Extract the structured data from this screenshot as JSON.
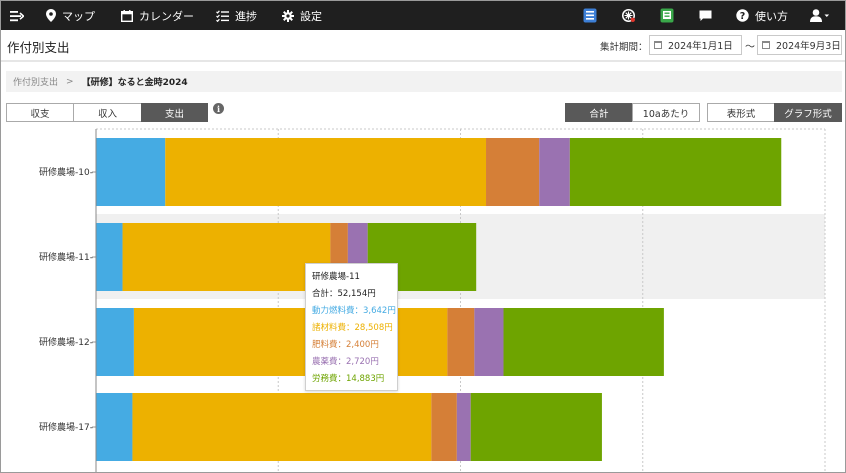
{
  "nav": {
    "items": [
      {
        "icon": "menu-expand-icon",
        "label": ""
      },
      {
        "icon": "map-pin-icon",
        "label": "マップ"
      },
      {
        "icon": "calendar-icon",
        "label": "カレンダー"
      },
      {
        "icon": "progress-list-icon",
        "label": "進捗"
      },
      {
        "icon": "gear-icon",
        "label": "設定"
      },
      {
        "icon": "blue-app-icon",
        "label": ""
      },
      {
        "icon": "ai-app-icon",
        "label": ""
      },
      {
        "icon": "green-app-icon",
        "label": ""
      },
      {
        "icon": "chat-icon",
        "label": ""
      },
      {
        "icon": "help-icon",
        "label": "使い方"
      },
      {
        "icon": "user-icon",
        "label": ""
      }
    ]
  },
  "page": {
    "title": "作付別支出",
    "period_label": "集計期間：",
    "start_date": "2024年1月1日",
    "tilde": "〜",
    "end_date": "2024年9月3日"
  },
  "breadcrumb": {
    "parent": "作付別支出",
    "separator": ">",
    "current": "【研修】なると金時2024"
  },
  "toggles": {
    "type_tabs": [
      "収支",
      "収入",
      "支出"
    ],
    "type_active": "支出",
    "info": "i",
    "unit_tabs": [
      "合計",
      "10aあたり"
    ],
    "unit_active": "合計",
    "view_tabs": [
      "表形式",
      "グラフ形式"
    ],
    "view_active": "グラフ形式"
  },
  "colors": {
    "動力燃料費": "#45abe3",
    "諸材料費": "#edb100",
    "肥料費": "#d57f37",
    "農薬費": "#9a72b1",
    "労務費": "#6ea400"
  },
  "chart_data": {
    "type": "bar",
    "orientation": "horizontal",
    "stacked": true,
    "categories": [
      "研修農場-10",
      "研修農場-11",
      "研修農場-12",
      "研修農場-17"
    ],
    "series": [
      {
        "name": "動力燃料費",
        "values": [
          9500,
          3642,
          5200,
          5000
        ]
      },
      {
        "name": "諸材料費",
        "values": [
          44000,
          28508,
          43000,
          41000
        ]
      },
      {
        "name": "肥料費",
        "values": [
          7300,
          2400,
          3700,
          3500
        ]
      },
      {
        "name": "農薬費",
        "values": [
          4200,
          2720,
          4000,
          1900
        ]
      },
      {
        "name": "労務費",
        "values": [
          29000,
          14883,
          22000,
          18000
        ]
      }
    ],
    "xlim": [
      0,
      100000
    ],
    "grid": true,
    "highlighted_category": "研修農場-11"
  },
  "tooltip": {
    "title": "研修農場-11",
    "total": "合計：52,154円",
    "lines": [
      {
        "text": "動力燃料費：3,642円",
        "color": "#45abe3"
      },
      {
        "text": "諸材料費：28,508円",
        "color": "#edb100"
      },
      {
        "text": "肥料費：2,400円",
        "color": "#d57f37"
      },
      {
        "text": "農薬費：2,720円",
        "color": "#9a72b1"
      },
      {
        "text": "労務費：14,883円",
        "color": "#6ea400"
      }
    ]
  }
}
